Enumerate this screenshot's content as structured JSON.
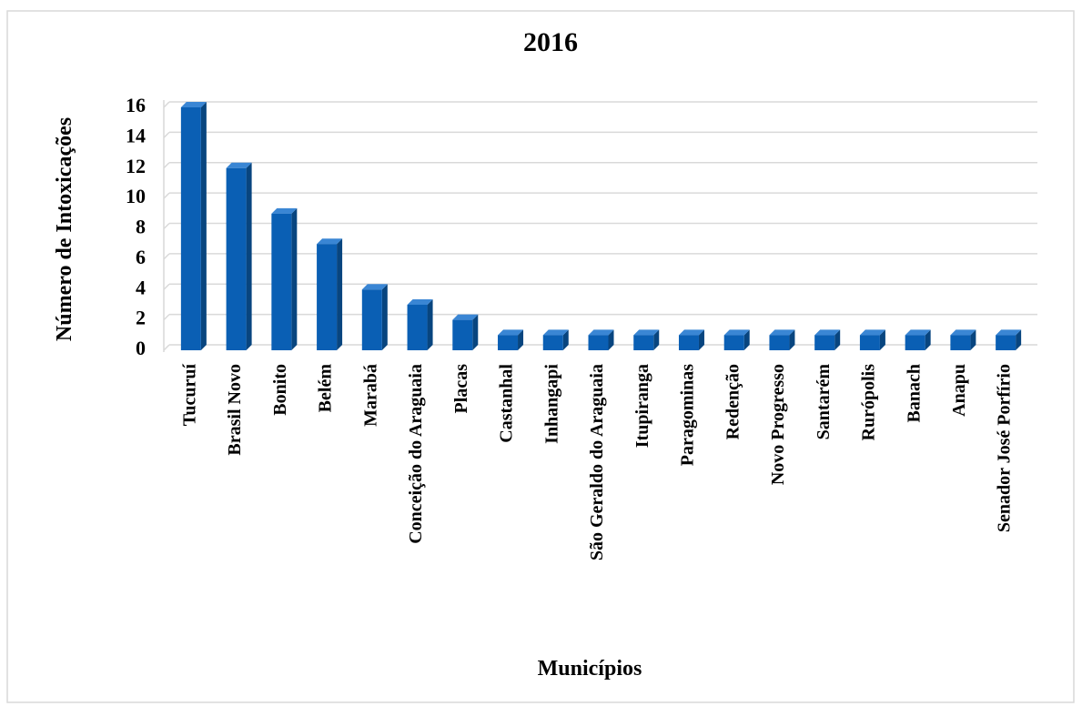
{
  "chart_data": {
    "type": "bar",
    "title": "2016",
    "x_label": "Municípios",
    "y_label": "Número de Intoxicações",
    "categories": [
      "Tucuruí",
      "Brasil Novo",
      "Bonito",
      "Belém",
      "Marabá",
      "Conceição do Araguaia",
      "Placas",
      "Castanhal",
      "Inhangapi",
      "São Geraldo do Araguaia",
      "Itupiranga",
      "Paragominas",
      "Redenção",
      "Novo Progresso",
      "Santarém",
      "Rurópolis",
      "Banach",
      "Anapu",
      "Senador José Porfírio"
    ],
    "values": [
      16,
      12,
      9,
      7,
      4,
      3,
      2,
      1,
      1,
      1,
      1,
      1,
      1,
      1,
      1,
      1,
      1,
      1,
      1
    ],
    "color": "#0a5fb4",
    "ylim": [
      0,
      16
    ],
    "yticks": [
      0,
      2,
      4,
      6,
      8,
      10,
      12,
      14,
      16
    ],
    "grid": true
  }
}
